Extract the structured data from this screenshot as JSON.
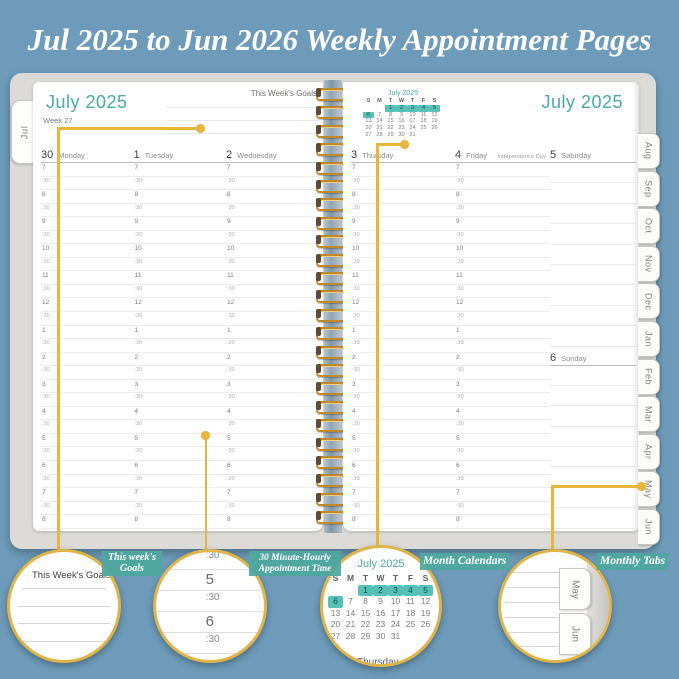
{
  "title": "Jul 2025 to Jun 2026 Weekly Appointment Pages",
  "colors": {
    "background": "#6d9bb9",
    "teal": "#4aa9a7",
    "chip": "#4fa89f",
    "gold": "#e7b73c",
    "highlight": "#57c1b7"
  },
  "left_page": {
    "tab": "Jul",
    "month_header": "July 2025",
    "goals_label": "This Week's Goals",
    "week_label": "Week 27",
    "days": [
      {
        "num": "30",
        "name": "Monday",
        "note": ""
      },
      {
        "num": "1",
        "name": "Tuesday",
        "note": ""
      },
      {
        "num": "2",
        "name": "Wednesday",
        "note": ""
      }
    ]
  },
  "right_page": {
    "month_header": "July 2025",
    "mini_calendar": {
      "title": "July 2025",
      "day_headers": [
        "S",
        "M",
        "T",
        "W",
        "T",
        "F",
        "S"
      ],
      "weeks": [
        [
          "",
          "",
          "1",
          "2",
          "3",
          "4",
          "5"
        ],
        [
          "6",
          "7",
          "8",
          "9",
          "10",
          "11",
          "12"
        ],
        [
          "13",
          "14",
          "15",
          "16",
          "17",
          "18",
          "19"
        ],
        [
          "20",
          "21",
          "22",
          "23",
          "24",
          "25",
          "26"
        ],
        [
          "27",
          "28",
          "29",
          "30",
          "31",
          "",
          ""
        ]
      ],
      "highlighted": [
        "1",
        "2",
        "3",
        "4",
        "5",
        "6"
      ]
    },
    "days": [
      {
        "num": "3",
        "name": "Thursday",
        "note": ""
      },
      {
        "num": "4",
        "name": "Friday",
        "note": "Independence Day"
      },
      {
        "num": "5",
        "name": "Saturday",
        "note": ""
      }
    ],
    "sunday": {
      "num": "6",
      "name": "Sunday"
    }
  },
  "time_slots": [
    "7",
    ":30",
    "8",
    ":30",
    "9",
    ":30",
    "10",
    ":30",
    "11",
    ":30",
    "12",
    ":30",
    "1",
    ":30",
    "2",
    ":30",
    "3",
    ":30",
    "4",
    ":30",
    "5",
    ":30",
    "6",
    ":30",
    "7",
    ":30",
    "8"
  ],
  "month_tabs": [
    "Aug",
    "Sep",
    "Oct",
    "Nov",
    "Dec",
    "Jan",
    "Feb",
    "Mar",
    "Apr",
    "May",
    "Jun"
  ],
  "callouts": [
    {
      "heading": "This Week's Goals",
      "label_lines": [
        "This week's",
        "Goals"
      ]
    },
    {
      "times": [
        ":30",
        "5",
        ":30",
        "6",
        ":30"
      ],
      "label_lines": [
        "30 Minute-Hourly",
        "Appointment Time"
      ]
    },
    {
      "partial_text": "Thursday",
      "label_lines": [
        "Month Calendars"
      ]
    },
    {
      "tabs": [
        "May",
        "Jun"
      ],
      "label_lines": [
        "Monthly Tabs"
      ]
    }
  ]
}
